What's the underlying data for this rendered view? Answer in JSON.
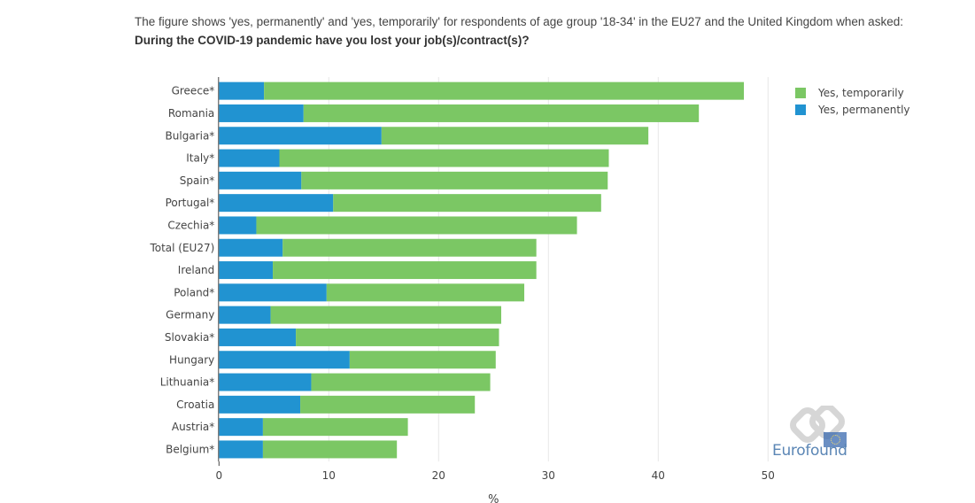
{
  "intro": {
    "text": "The figure shows 'yes, permanently' and 'yes, temporarily' for respondents of age group '18-34' in the EU27 and the United Kingdom when asked: ",
    "question": "During the COVID-19 pandemic have you lost your job(s)/contract(s)?"
  },
  "logo": {
    "text": "Eurofound"
  },
  "chart_data": {
    "type": "bar",
    "orientation": "horizontal",
    "stacked": true,
    "title": "",
    "xlabel": "%",
    "ylabel": "",
    "xlim": [
      0,
      50
    ],
    "xticks": [
      0,
      10,
      20,
      30,
      40,
      50
    ],
    "grid": true,
    "legend_position": "top-right",
    "categories": [
      "Greece*",
      "Romania",
      "Bulgaria*",
      "Italy*",
      "Spain*",
      "Portugal*",
      "Czechia*",
      "Total (EU27)",
      "Ireland",
      "Poland*",
      "Germany",
      "Slovakia*",
      "Hungary",
      "Lithuania*",
      "Croatia",
      "Austria*",
      "Belgium*"
    ],
    "series": [
      {
        "name": "Yes, permanently",
        "color": "#2193d1",
        "values": [
          4.1,
          7.7,
          14.8,
          5.5,
          7.5,
          10.4,
          3.4,
          5.8,
          4.9,
          9.8,
          4.7,
          7.0,
          11.9,
          8.4,
          7.4,
          4.0,
          4.0
        ]
      },
      {
        "name": "Yes, temporarily",
        "color": "#7bc764",
        "values": [
          43.7,
          36.0,
          24.3,
          30.0,
          27.9,
          24.4,
          29.2,
          23.1,
          24.0,
          18.0,
          21.0,
          18.5,
          13.3,
          16.3,
          15.9,
          13.2,
          12.2
        ]
      }
    ],
    "legend": [
      {
        "name": "Yes, temporarily",
        "color": "#7bc764"
      },
      {
        "name": "Yes, permanently",
        "color": "#2193d1"
      }
    ]
  }
}
